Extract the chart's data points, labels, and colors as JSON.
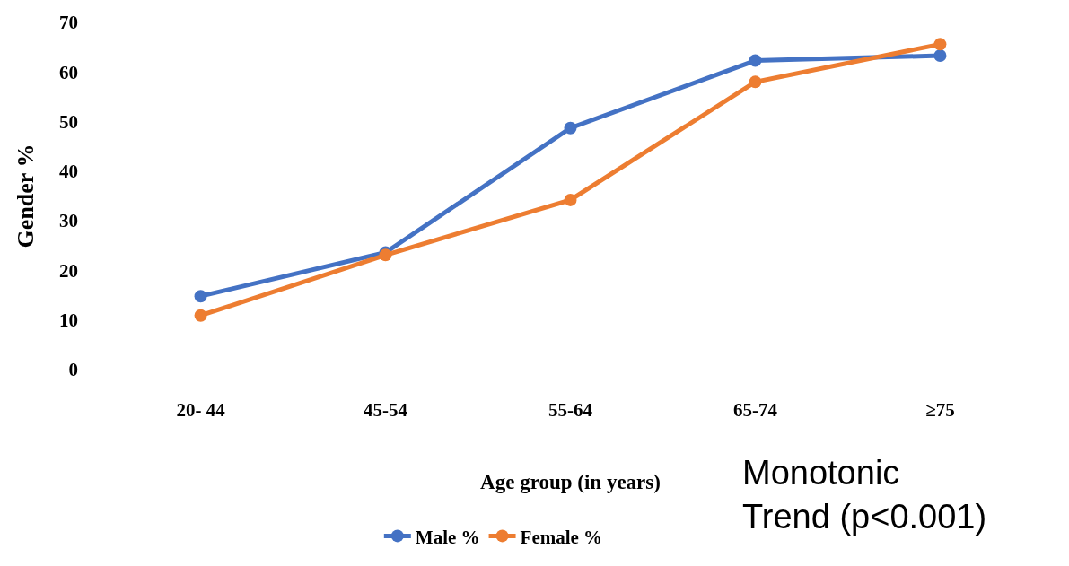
{
  "chart_data": {
    "type": "line",
    "xlabel": "Age group (in years)",
    "ylabel": "Gender %",
    "categories": [
      "20- 44",
      "45-54",
      "55-64",
      "65-74",
      "≥75"
    ],
    "series": [
      {
        "name": "Male %",
        "color": "#4472c4",
        "values": [
          14.8,
          23.6,
          48.7,
          62.3,
          63.3
        ]
      },
      {
        "name": "Female %",
        "color": "#ed7d31",
        "values": [
          10.9,
          23.1,
          34.2,
          58.0,
          65.6
        ]
      }
    ],
    "ylim": [
      0,
      70
    ],
    "yticks": [
      0,
      10,
      20,
      30,
      40,
      50,
      60,
      70
    ],
    "grid": false,
    "legend": "bottom",
    "marker": "circle",
    "line_style": "solid",
    "annotations": [
      "Monotonic\nTrend (p<0.001)"
    ]
  }
}
